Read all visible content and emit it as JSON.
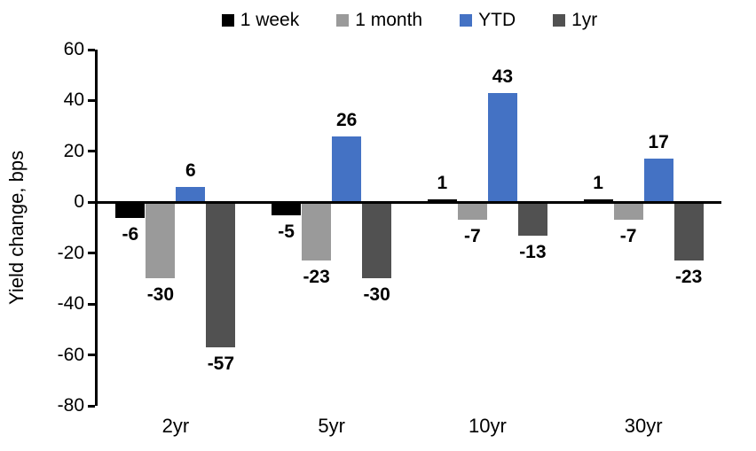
{
  "chart_data": {
    "type": "bar",
    "title": "",
    "ylabel": "Yield change, bps",
    "xlabel": "",
    "categories": [
      "2yr",
      "5yr",
      "10yr",
      "30yr"
    ],
    "series": [
      {
        "name": "1 week",
        "color": "#000000",
        "values": [
          -6,
          -5,
          1,
          1
        ]
      },
      {
        "name": "1 month",
        "color": "#9A9A9A",
        "values": [
          -30,
          -23,
          -7,
          -7
        ]
      },
      {
        "name": "YTD",
        "color": "#4472C4",
        "values": [
          6,
          26,
          43,
          17
        ]
      },
      {
        "name": "1yr",
        "color": "#515151",
        "values": [
          -57,
          -30,
          -13,
          -23
        ]
      }
    ],
    "ylim": [
      -80,
      60
    ],
    "yticks": [
      60,
      40,
      20,
      0,
      -20,
      -40,
      -60,
      -80
    ],
    "grid": false,
    "legend_position": "top",
    "data_labels": true,
    "axis_color": "#000000",
    "background_color": "#ffffff"
  }
}
